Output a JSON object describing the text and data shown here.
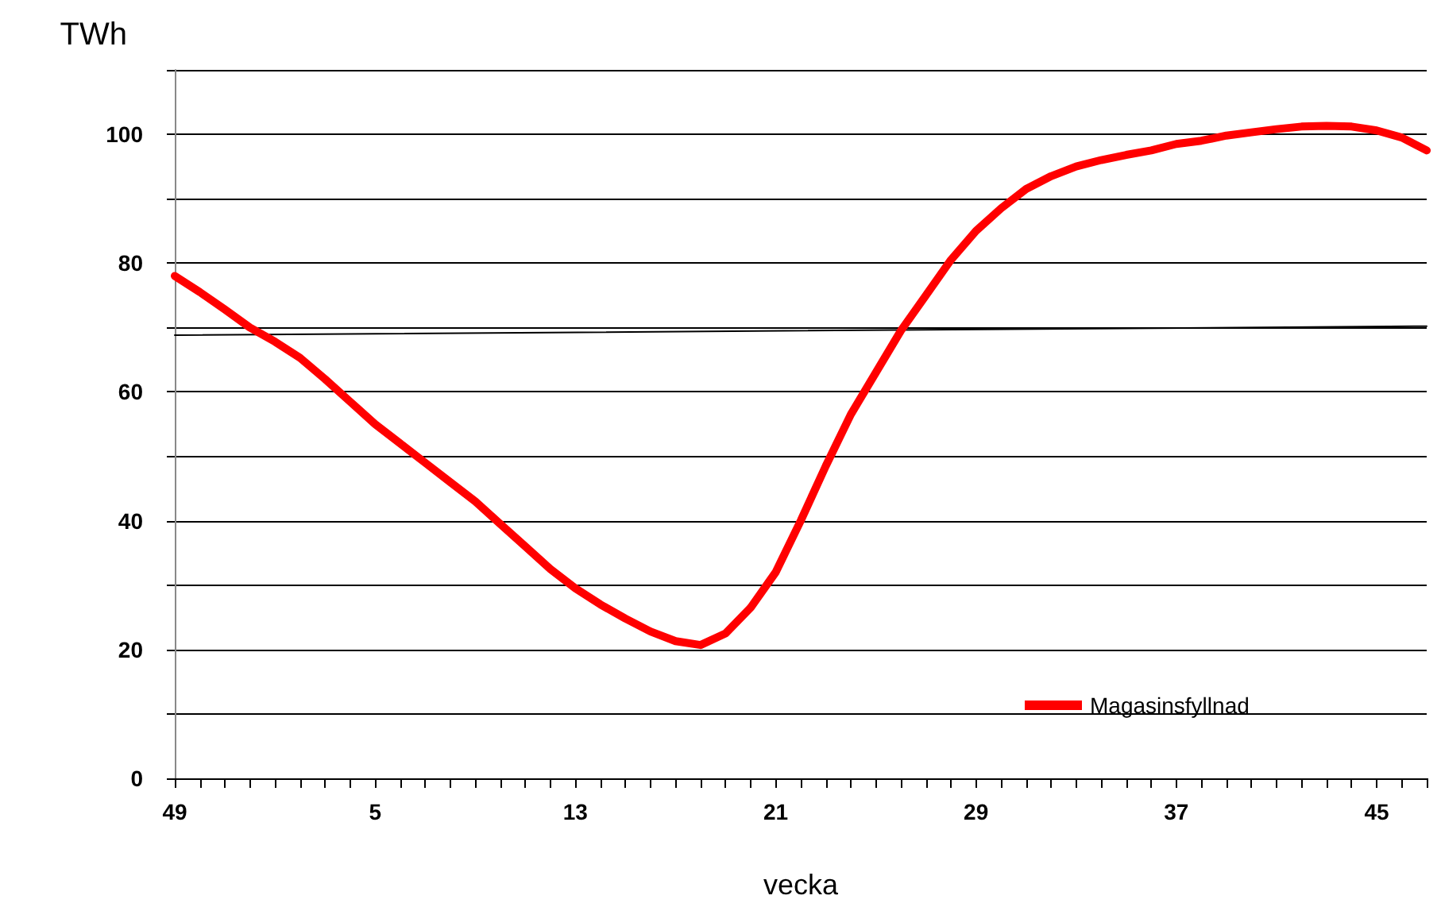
{
  "chart_data": {
    "type": "line",
    "xlabel": "vecka",
    "ylabel": "TWh",
    "categories": [
      "49",
      null,
      null,
      null,
      null,
      null,
      null,
      null,
      "5",
      null,
      null,
      null,
      null,
      null,
      null,
      null,
      "13",
      null,
      null,
      null,
      null,
      null,
      null,
      null,
      "21",
      null,
      null,
      null,
      null,
      null,
      null,
      null,
      "29",
      null,
      null,
      null,
      null,
      null,
      null,
      null,
      "37",
      null,
      null,
      null,
      null,
      null,
      null,
      null,
      "45",
      null,
      null
    ],
    "series": [
      {
        "name": "Magasinsfyllnad",
        "color": "#ff0000",
        "values": [
          78,
          75.5,
          72.8,
          70,
          67.8,
          65.3,
          62,
          58.5,
          55,
          52,
          49,
          46,
          43,
          39.5,
          36,
          32.5,
          29.5,
          27,
          24.8,
          22.8,
          21.3,
          20.7,
          22.5,
          26.5,
          32,
          40,
          48.5,
          56.5,
          63,
          69.5,
          75,
          80.5,
          85,
          88.5,
          91.5,
          93.5,
          95,
          96,
          96.8,
          97.5,
          98.5,
          99,
          99.8,
          100.3,
          100.8,
          101.2,
          101.3,
          101.2,
          100.6,
          99.5,
          97.5
        ]
      },
      {
        "color": "#000000",
        "values": [
          68.8,
          null,
          null,
          null,
          null,
          null,
          null,
          null,
          null,
          null,
          null,
          null,
          null,
          null,
          null,
          null,
          null,
          null,
          null,
          null,
          null,
          null,
          null,
          null,
          null,
          null,
          null,
          null,
          null,
          null,
          null,
          null,
          null,
          null,
          null,
          null,
          null,
          null,
          null,
          null,
          null,
          null,
          null,
          null,
          null,
          null,
          null,
          null,
          null,
          null,
          70.2
        ]
      }
    ],
    "ylim": [
      0,
      110
    ],
    "yticks": [
      0,
      {
        "value": 10,
        "label": null
      },
      20,
      {
        "value": 30,
        "label": null
      },
      40,
      {
        "value": 50,
        "label": null
      },
      60,
      {
        "value": 70,
        "label": null
      },
      80,
      {
        "value": 90,
        "label": null
      },
      100,
      {
        "value": 110,
        "label": null
      }
    ],
    "grid": "y",
    "legend": "bottom right",
    "marker": "none",
    "line_style": "solid"
  }
}
